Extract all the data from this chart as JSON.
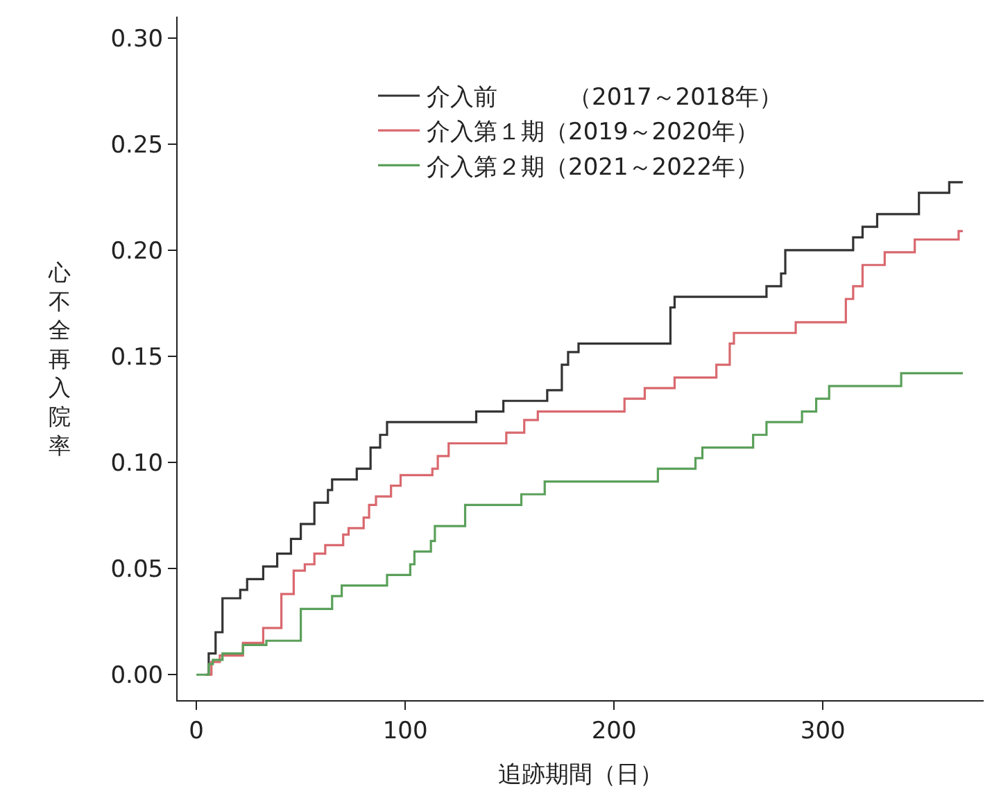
{
  "chart_data": {
    "type": "step",
    "xlabel": "追跡期間（日）",
    "ylabel": "心不全再入院率",
    "xlim": [
      -9,
      377
    ],
    "ylim": [
      -0.012,
      0.31
    ],
    "xticks": [
      0,
      100,
      200,
      300
    ],
    "yticks": [
      {
        "value": 0,
        "label": "0.00"
      },
      {
        "value": 0.05,
        "label": "0.05"
      },
      {
        "value": 0.1,
        "label": "0.10"
      },
      {
        "value": 0.15,
        "label": "0.15"
      },
      {
        "value": 0.2,
        "label": "0.20"
      },
      {
        "value": 0.25,
        "label": "0.25"
      },
      {
        "value": 0.3,
        "label": "0.30"
      }
    ],
    "legend": "top",
    "marker": "none",
    "line_style": "solid",
    "series": [
      {
        "name": "介入前　　　（2017～2018年）",
        "color": "#333333",
        "x": [
          4.6,
          5.9,
          9.2,
          12.5,
          21,
          24.3,
          32,
          38.7,
          45.3,
          50,
          56.5,
          63,
          65,
          76.8,
          83.4,
          88,
          91.3,
          134,
          147,
          168,
          175,
          178,
          183,
          227,
          229,
          273,
          280,
          282,
          314.5,
          319,
          326,
          346,
          360.5,
          367
        ],
        "values": [
          0,
          0.01,
          0.02,
          0.036,
          0.04,
          0.045,
          0.051,
          0.057,
          0.064,
          0.071,
          0.081,
          0.087,
          0.092,
          0.097,
          0.107,
          0.113,
          0.119,
          0.124,
          0.129,
          0.134,
          0.146,
          0.152,
          0.156,
          0.173,
          0.178,
          0.183,
          0.189,
          0.2,
          0.206,
          0.211,
          0.217,
          0.227,
          0.232,
          0.232
        ]
      },
      {
        "name": "介入第１期（2019～2020年）",
        "color": "#d9686e",
        "x": [
          4.6,
          7.2,
          11.2,
          22.3,
          32,
          40.7,
          46.6,
          51.9,
          56.5,
          61.7,
          70.3,
          72.9,
          80.1,
          82.7,
          86,
          93.2,
          97.8,
          113,
          115.6,
          120.8,
          148.4,
          157,
          163.5,
          205,
          214.7,
          229,
          249,
          255.4,
          257.4,
          287,
          311,
          314.5,
          319,
          329.6,
          344,
          365,
          367
        ],
        "values": [
          0,
          0.006,
          0.009,
          0.015,
          0.022,
          0.038,
          0.049,
          0.052,
          0.057,
          0.061,
          0.066,
          0.069,
          0.074,
          0.08,
          0.084,
          0.089,
          0.094,
          0.097,
          0.103,
          0.109,
          0.114,
          0.12,
          0.124,
          0.13,
          0.135,
          0.14,
          0.146,
          0.156,
          0.161,
          0.166,
          0.177,
          0.183,
          0.193,
          0.199,
          0.205,
          0.209,
          0.209
        ]
      },
      {
        "name": "介入第２期（2021～2022年）",
        "color": "#5aa05a",
        "x": [
          0,
          5.9,
          7.9,
          12.5,
          22.3,
          33.5,
          50,
          65,
          69.6,
          91.3,
          102.4,
          104.4,
          112.3,
          114.2,
          128.7,
          155.6,
          166.8,
          221,
          239,
          242.3,
          266.6,
          273,
          290,
          296.8,
          303,
          337.5,
          367
        ],
        "values": [
          0,
          0.005,
          0.007,
          0.01,
          0.014,
          0.016,
          0.031,
          0.037,
          0.042,
          0.047,
          0.052,
          0.058,
          0.063,
          0.07,
          0.08,
          0.085,
          0.091,
          0.097,
          0.102,
          0.107,
          0.113,
          0.119,
          0.124,
          0.13,
          0.136,
          0.142,
          0.142
        ]
      }
    ]
  }
}
